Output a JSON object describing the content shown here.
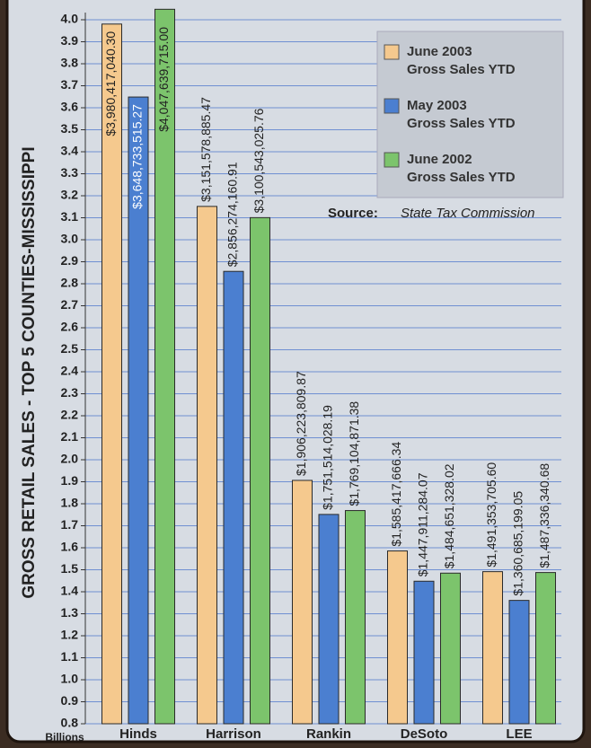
{
  "chart_data": {
    "type": "bar",
    "title": "GROSS RETAIL SALES - TOP 5 COUNTIES-MISSISSIPPI",
    "y_unit": "Billions",
    "source_label": "Source:",
    "source": "State Tax Commission",
    "categories": [
      "Hinds",
      "Harrison",
      "Rankin",
      "DeSoto",
      "LEE"
    ],
    "series": [
      {
        "name": "June 2003\nGross Sales YTD",
        "color": "#f5c98e",
        "values": [
          3.9804170403,
          3.15157888547,
          1.90622380987,
          1.58541766634,
          1.4913537056
        ],
        "value_labels": [
          "$3,980,417,040.30",
          "$3,151,578,885.47",
          "$1,906,223,809.87",
          "$1,585,417,666.34",
          "$1,491,353,705.60"
        ]
      },
      {
        "name": "May 2003\nGross Sales YTD",
        "color": "#4b7fd0",
        "values": [
          3.64873351527,
          2.85627416091,
          1.75151402819,
          1.44791128407,
          1.36068519905
        ],
        "value_labels": [
          "$3,648,733,515.27",
          "$2,856,274,160.91",
          "$1,751,514,028.19",
          "$1,447,911,284.07",
          "$1,360,685,199.05"
        ]
      },
      {
        "name": "June 2002\nGross Sales YTD",
        "color": "#7cc46c",
        "values": [
          4.047639715,
          3.10054302576,
          1.76910487138,
          1.48465132802,
          1.48733634068
        ],
        "value_labels": [
          "$4,047,639,715.00",
          "$3,100,543,025.76",
          "$1,769,104,871.38",
          "$1,484,651,328.02",
          "$1,487,336,340.68"
        ]
      }
    ],
    "ylim": [
      0.8,
      4.0
    ],
    "yticks": [
      0.8,
      0.9,
      {
        "value": 1,
        "label": "1.0"
      },
      1.1,
      1.2,
      1.3,
      1.4,
      1.5,
      1.6,
      1.7,
      1.8,
      1.9,
      {
        "value": 2,
        "label": "2.0"
      },
      2.1,
      2.2,
      2.3,
      2.4,
      2.5,
      2.6,
      2.7,
      2.8,
      2.9,
      {
        "value": 3,
        "label": "3.0"
      },
      3.1,
      3.2,
      3.3,
      3.4,
      3.5,
      3.6,
      3.7,
      3.8,
      3.9,
      {
        "value": 4,
        "label": "4.0"
      }
    ],
    "grid": true,
    "legend": "top-right"
  }
}
